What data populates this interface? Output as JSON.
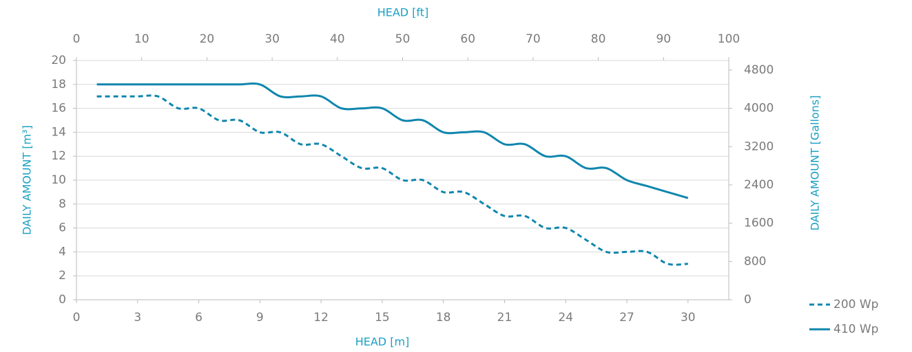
{
  "chart_data": {
    "type": "line",
    "x_label": "HEAD [m]",
    "x2_label": "HEAD [ft]",
    "y_label": "DAILY AMOUNT [m³]",
    "y2_label": "DAILY AMOUNT [Gallons]",
    "x": [
      1,
      2,
      3,
      4,
      5,
      6,
      7,
      8,
      9,
      10,
      11,
      12,
      13,
      14,
      15,
      16,
      17,
      18,
      19,
      20,
      21,
      22,
      23,
      24,
      25,
      26,
      27,
      28,
      29,
      30
    ],
    "series": [
      {
        "name": "200 Wp",
        "color": "#0f86ad",
        "dashed": true,
        "values": [
          17,
          17,
          17,
          17,
          16,
          16,
          15,
          15,
          14,
          14,
          13,
          13,
          12,
          11,
          11,
          10,
          10,
          9,
          9,
          8,
          7,
          7,
          6,
          6,
          5,
          4,
          4,
          4,
          3,
          3
        ]
      },
      {
        "name": "410 Wp",
        "color": "#0f86ad",
        "dashed": false,
        "values": [
          18,
          18,
          18,
          18,
          18,
          18,
          18,
          18,
          18,
          17,
          17,
          17,
          16,
          16,
          16,
          15,
          15,
          14,
          14,
          14,
          13,
          13,
          12,
          12,
          11,
          11,
          10,
          9.5,
          9,
          8.5
        ]
      }
    ],
    "xlim": [
      0,
      32
    ],
    "xticks": [
      0,
      3,
      6,
      9,
      12,
      15,
      18,
      21,
      24,
      27,
      30
    ],
    "x2lim": [
      0,
      100
    ],
    "x2ticks": [
      0,
      10,
      20,
      30,
      40,
      50,
      60,
      70,
      80,
      90,
      100
    ],
    "ylim": [
      0,
      20
    ],
    "yticks": [
      0,
      2,
      4,
      6,
      8,
      10,
      12,
      14,
      16,
      18,
      20
    ],
    "y2lim": [
      0,
      5000
    ],
    "y2ticks": [
      0,
      800,
      1600,
      2400,
      3200,
      4000,
      4800
    ],
    "grid": true,
    "legend": "outside-bottom-right"
  }
}
